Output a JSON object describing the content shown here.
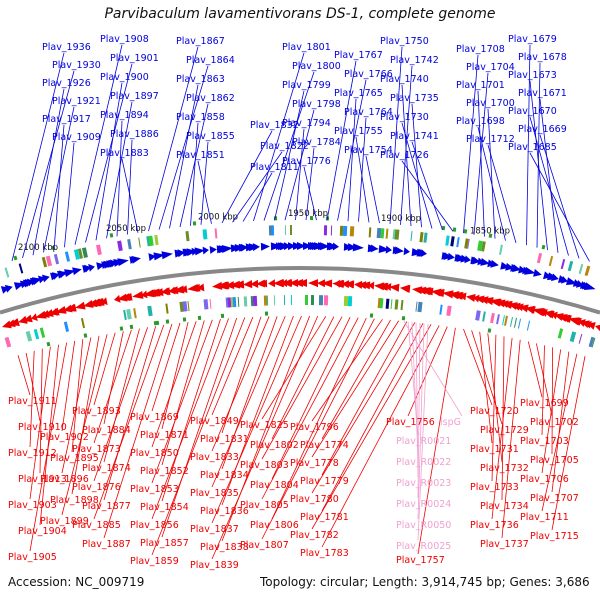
{
  "title": "Parvibaculum lavamentivorans DS-1, complete genome",
  "footer": {
    "accession": "Accession: NC_009719",
    "summary": "Topology: circular; Length: 3,914,745 bp; Genes: 3,686"
  },
  "colors": {
    "top_strand": "#0000dd",
    "bottom_strand": "#ee0000",
    "rna": "#f0a0d0",
    "backbone": "#888888"
  },
  "scale_ticks": [
    "2100 kbp",
    "2050 kbp",
    "2000 kbp",
    "1950 kbp",
    "1900 kbp",
    "1850 kbp"
  ],
  "top_genes": [
    "Plav_1936",
    "Plav_1930",
    "Plav_1926",
    "Plav_1921",
    "Plav_1917",
    "Plav_1909",
    "Plav_1908",
    "Plav_1901",
    "Plav_1900",
    "Plav_1897",
    "Plav_1894",
    "Plav_1886",
    "Plav_1883",
    "Plav_1867",
    "Plav_1864",
    "Plav_1863",
    "Plav_1862",
    "Plav_1858",
    "Plav_1855",
    "Plav_1851",
    "Plav_1832",
    "Plav_1822",
    "Plav_1811",
    "Plav_1801",
    "Plav_1800",
    "Plav_1799",
    "Plav_1798",
    "Plav_1794",
    "Plav_1784",
    "Plav_1776",
    "Plav_1767",
    "Plav_1766",
    "Plav_1765",
    "Plav_1764",
    "Plav_1755",
    "Plav_1754",
    "Plav_1750",
    "Plav_1742",
    "Plav_1740",
    "Plav_1735",
    "Plav_1730",
    "Plav_1741",
    "Plav_1726",
    "Plav_1708",
    "Plav_1704",
    "Plav_1701",
    "Plav_1700",
    "Plav_1698",
    "Plav_1712",
    "Plav_1679",
    "Plav_1678",
    "Plav_1673",
    "Plav_1671",
    "Plav_1670",
    "Plav_1669",
    "Plav_1685"
  ],
  "bottom_genes": [
    "Plav_1911",
    "Plav_1910",
    "Plav_1912",
    "Plav_1913",
    "Plav_1903",
    "Plav_1904",
    "Plav_1905",
    "Plav_1902",
    "Plav_1895",
    "Plav_1896",
    "Plav_1898",
    "Plav_1899",
    "Plav_1893",
    "Plav_1884",
    "Plav_1873",
    "Plav_1874",
    "Plav_1876",
    "Plav_1877",
    "Plav_1885",
    "Plav_1887",
    "Plav_1869",
    "Plav_1871",
    "Plav_1850",
    "Plav_1852",
    "Plav_1853",
    "Plav_1854",
    "Plav_1856",
    "Plav_1857",
    "Plav_1859",
    "Plav_1849",
    "Plav_1831",
    "Plav_1833",
    "Plav_1834",
    "Plav_1835",
    "Plav_1836",
    "Plav_1837",
    "Plav_1838",
    "Plav_1839",
    "Plav_1825",
    "Plav_1802",
    "Plav_1803",
    "Plav_1804",
    "Plav_1805",
    "Plav_1806",
    "Plav_1807",
    "Plav_1796",
    "Plav_1774",
    "Plav_1778",
    "Plav_1779",
    "Plav_1780",
    "Plav_1781",
    "Plav_1782",
    "Plav_1783",
    "Plav_1756",
    "Plav_1757",
    "Plav_1720",
    "Plav_1729",
    "Plav_1731",
    "Plav_1732",
    "Plav_1733",
    "Plav_1734",
    "Plav_1736",
    "Plav_1737",
    "Plav_1699",
    "Plav_1702",
    "Plav_1703",
    "Plav_1705",
    "Plav_1706",
    "Plav_1707",
    "Plav_1711",
    "Plav_1715"
  ],
  "rna_genes": [
    "ispG",
    "Plav_R0021",
    "Plav_R0022",
    "Plav_R0023",
    "Plav_R0024",
    "Plav_R0050",
    "Plav_R0025"
  ]
}
